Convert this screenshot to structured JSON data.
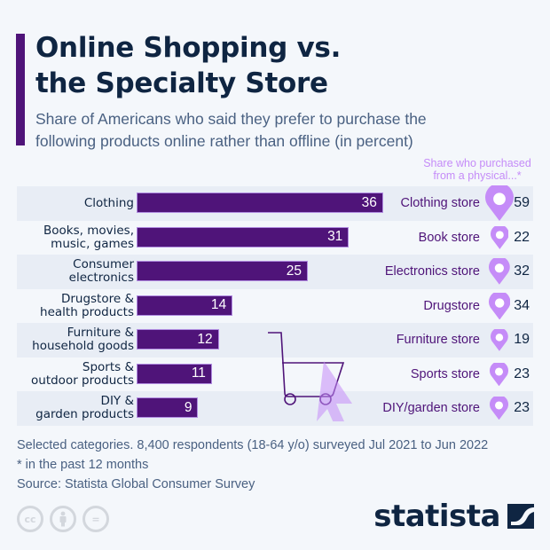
{
  "header": {
    "title_line1": "Online Shopping vs.",
    "title_line2": "the Specialty Store",
    "subtitle_line1": "Share of Americans who said they prefer to purchase the",
    "subtitle_line2": "following products online rather than offline (in percent)",
    "right_header_line1": "Share who purchased",
    "right_header_line2": "from a physical...*"
  },
  "rows": [
    {
      "label1": "Clothing",
      "label2": "",
      "value": 36,
      "value_text": "36",
      "store": "Clothing store",
      "store_value": 59,
      "store_value_text": "59"
    },
    {
      "label1": "Books, movies,",
      "label2": "music, games",
      "value": 31,
      "value_text": "31",
      "store": "Book store",
      "store_value": 22,
      "store_value_text": "22"
    },
    {
      "label1": "Consumer",
      "label2": "electronics",
      "value": 25,
      "value_text": "25",
      "store": "Electronics store",
      "store_value": 32,
      "store_value_text": "32"
    },
    {
      "label1": "Drugstore &",
      "label2": "health products",
      "value": 14,
      "value_text": "14",
      "store": "Drugstore",
      "store_value": 34,
      "store_value_text": "34"
    },
    {
      "label1": "Furniture &",
      "label2": "household goods",
      "value": 12,
      "value_text": "12",
      "store": "Furniture store",
      "store_value": 19,
      "store_value_text": "19"
    },
    {
      "label1": "Sports &",
      "label2": "outdoor products",
      "value": 11,
      "value_text": "11",
      "store": "Sports store",
      "store_value": 23,
      "store_value_text": "23"
    },
    {
      "label1": "DIY &",
      "label2": "garden products",
      "value": 9,
      "value_text": "9",
      "store": "DIY/garden store",
      "store_value": 23,
      "store_value_text": "23"
    }
  ],
  "footer": {
    "note1": "Selected categories. 8,400 respondents (18-64 y/o) surveyed Jul 2021 to Jun 2022",
    "note2": "* in the past 12 months",
    "source": "Source: Statista Global Consumer Survey",
    "cc_labels": [
      "cc",
      "by",
      "="
    ],
    "brand": "statista"
  },
  "colors": {
    "bar": "#4f1479",
    "pin": "#c58cf8",
    "title": "#0f2542",
    "background": "#f4f7fb"
  },
  "chart_data": {
    "type": "bar",
    "orientation": "horizontal",
    "title": "Online Shopping vs. the Specialty Store",
    "subtitle": "Share of Americans who said they prefer to purchase the following products online rather than offline (in percent)",
    "categories": [
      "Clothing",
      "Books, movies, music, games",
      "Consumer electronics",
      "Drugstore & health products",
      "Furniture & household goods",
      "Sports & outdoor products",
      "DIY & garden products"
    ],
    "series": [
      {
        "name": "Prefer to purchase online (%)",
        "values": [
          36,
          31,
          25,
          14,
          12,
          11,
          9
        ]
      },
      {
        "name": "Share who purchased from a physical... store* (%)",
        "stores": [
          "Clothing store",
          "Book store",
          "Electronics store",
          "Drugstore",
          "Furniture store",
          "Sports store",
          "DIY/garden store"
        ],
        "values": [
          59,
          22,
          32,
          34,
          19,
          23,
          23
        ]
      }
    ],
    "xlabel": "",
    "ylabel": "",
    "grid": false,
    "data_labels": true,
    "notes": [
      "Selected categories. 8,400 respondents (18-64 y/o) surveyed Jul 2021 to Jun 2022",
      "* in the past 12 months"
    ],
    "source": "Statista Global Consumer Survey"
  }
}
